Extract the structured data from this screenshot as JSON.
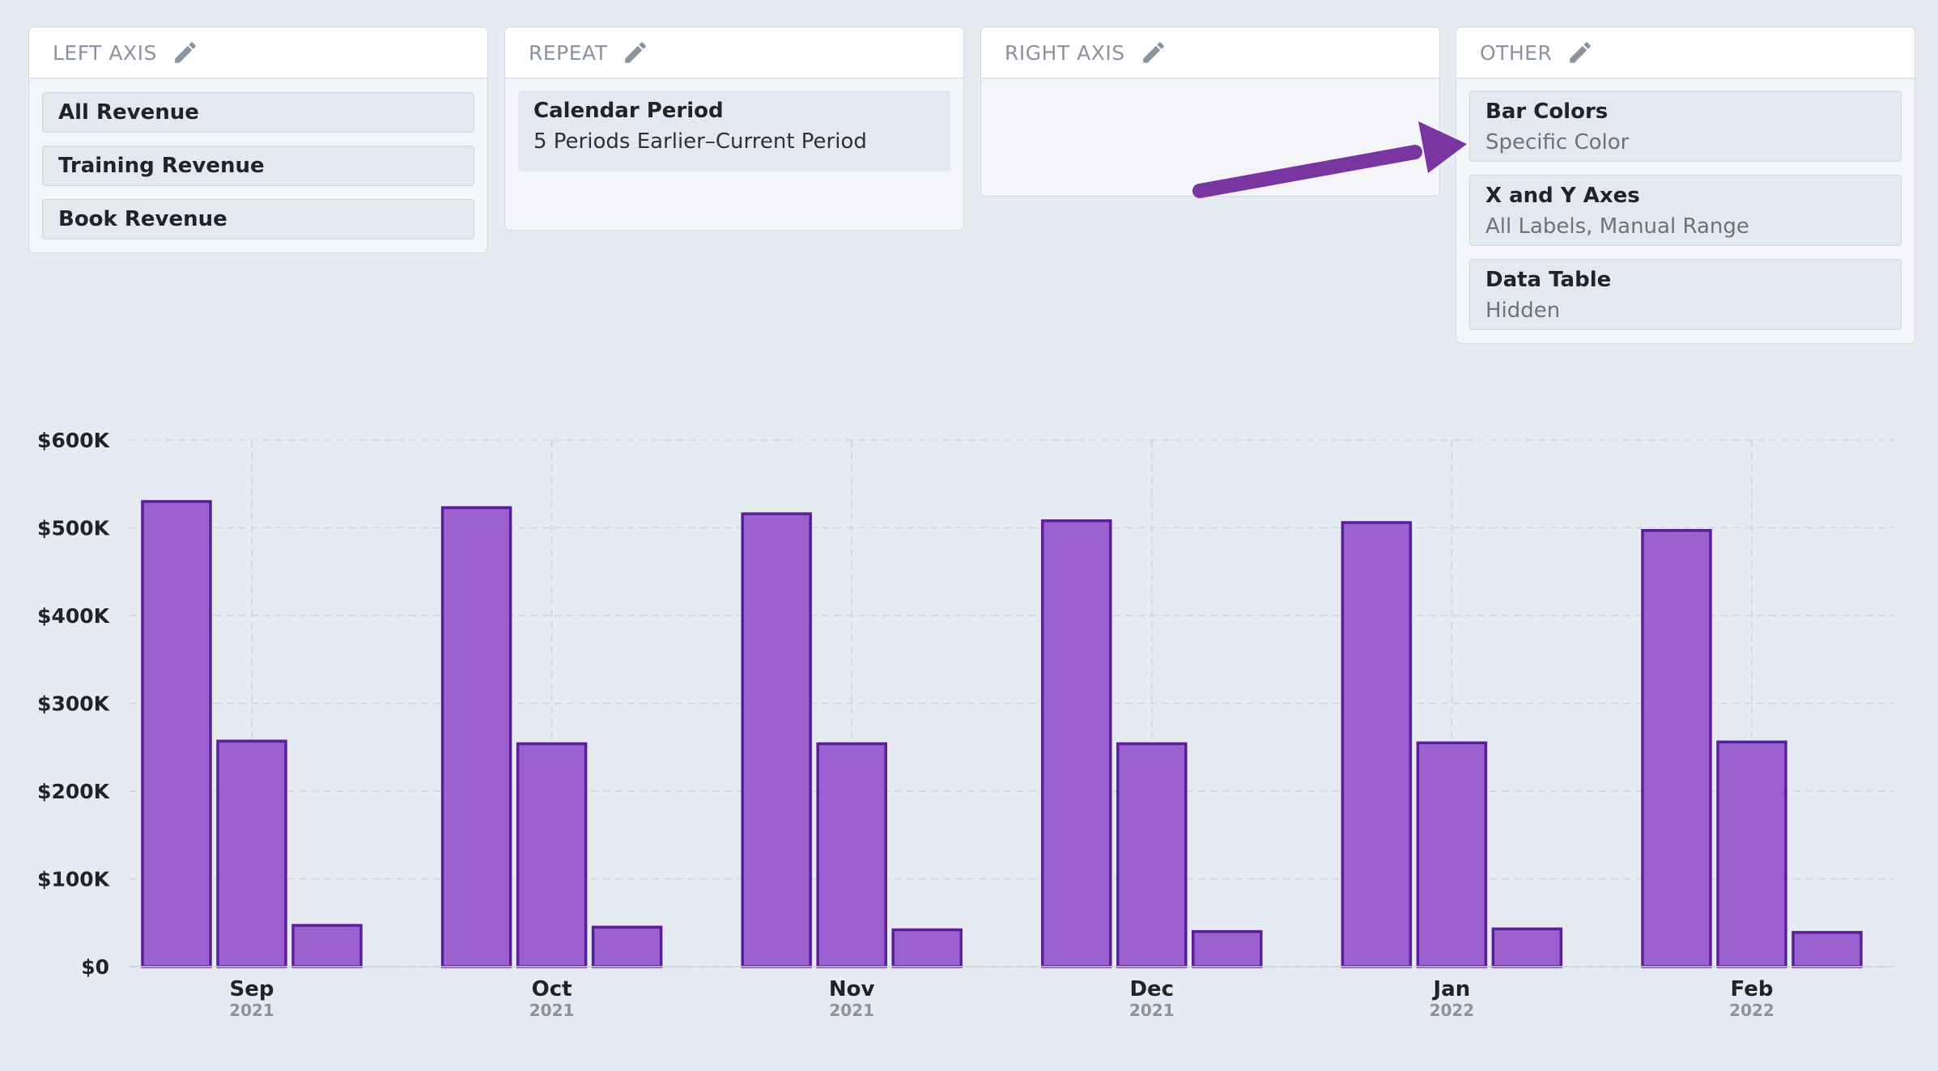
{
  "panels": {
    "left_axis": {
      "title": "LEFT AXIS",
      "items": [
        "All Revenue",
        "Training Revenue",
        "Book Revenue"
      ]
    },
    "repeat": {
      "title": "REPEAT",
      "card_title": "Calendar Period",
      "card_sub": "5 Periods Earlier–Current Period"
    },
    "right_axis": {
      "title": "RIGHT AXIS"
    },
    "other": {
      "title": "OTHER",
      "cards": [
        {
          "title": "Bar Colors",
          "sub": "Specific Color"
        },
        {
          "title": "X and Y Axes",
          "sub": "All Labels, Manual Range"
        },
        {
          "title": "Data Table",
          "sub": "Hidden"
        }
      ]
    }
  },
  "colors": {
    "bar_fill": "#9b61cf",
    "bar_stroke": "#5a1e9a",
    "arrow": "#7a35a0"
  },
  "chart_data": {
    "type": "bar",
    "categories": [
      "Sep",
      "Oct",
      "Nov",
      "Dec",
      "Jan",
      "Feb"
    ],
    "category_years": [
      "2021",
      "2021",
      "2021",
      "2021",
      "2022",
      "2022"
    ],
    "series": [
      {
        "name": "All Revenue",
        "values": [
          530000,
          523000,
          516000,
          508000,
          506000,
          497000
        ]
      },
      {
        "name": "Training Revenue",
        "values": [
          257000,
          254000,
          254000,
          254000,
          255000,
          256000
        ]
      },
      {
        "name": "Book Revenue",
        "values": [
          47000,
          45000,
          42000,
          40000,
          43000,
          39000
        ]
      }
    ],
    "ylim": [
      0,
      600000
    ],
    "yticks": [
      0,
      100000,
      200000,
      300000,
      400000,
      500000,
      600000
    ],
    "ytick_labels": [
      "$0",
      "$100K",
      "$200K",
      "$300K",
      "$400K",
      "$500K",
      "$600K"
    ],
    "grid": true
  }
}
